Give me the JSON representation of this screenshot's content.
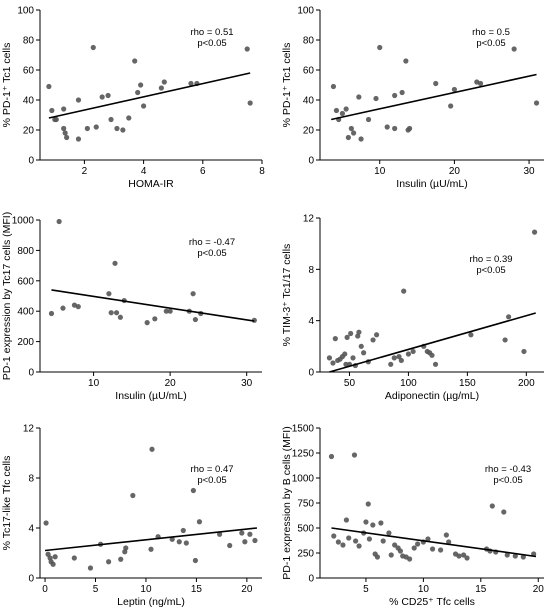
{
  "colors": {
    "point": "#555555",
    "line": "#000000",
    "axis": "#000000"
  },
  "chart_data": [
    {
      "type": "scatter",
      "xlabel": "HOMA-IR",
      "ylabel": "% PD-1⁺ Tc1 cells",
      "xlim": [
        0.5,
        8
      ],
      "ylim": [
        0,
        100
      ],
      "xticks": [
        "2",
        "4",
        "6",
        "8"
      ],
      "yticks": [
        "0",
        "20",
        "40",
        "60",
        "80",
        "100"
      ],
      "annotation": [
        "rho = 0.51",
        "p<0.05"
      ],
      "fit": {
        "x": [
          0.8,
          7.6
        ],
        "y": [
          28,
          58
        ]
      },
      "points": [
        {
          "x": 0.8,
          "y": 49
        },
        {
          "x": 0.9,
          "y": 33
        },
        {
          "x": 1.0,
          "y": 27
        },
        {
          "x": 1.05,
          "y": 27
        },
        {
          "x": 1.3,
          "y": 34
        },
        {
          "x": 1.3,
          "y": 21
        },
        {
          "x": 1.35,
          "y": 18
        },
        {
          "x": 1.4,
          "y": 15
        },
        {
          "x": 1.8,
          "y": 40
        },
        {
          "x": 1.8,
          "y": 14
        },
        {
          "x": 2.1,
          "y": 21
        },
        {
          "x": 2.3,
          "y": 75
        },
        {
          "x": 2.4,
          "y": 22
        },
        {
          "x": 2.6,
          "y": 42
        },
        {
          "x": 2.8,
          "y": 43
        },
        {
          "x": 2.9,
          "y": 27
        },
        {
          "x": 3.1,
          "y": 21
        },
        {
          "x": 3.3,
          "y": 20
        },
        {
          "x": 3.5,
          "y": 28
        },
        {
          "x": 3.7,
          "y": 66
        },
        {
          "x": 3.8,
          "y": 45
        },
        {
          "x": 3.9,
          "y": 50
        },
        {
          "x": 4.0,
          "y": 36
        },
        {
          "x": 4.6,
          "y": 48
        },
        {
          "x": 4.7,
          "y": 52
        },
        {
          "x": 5.6,
          "y": 51
        },
        {
          "x": 5.8,
          "y": 51
        },
        {
          "x": 7.5,
          "y": 74
        },
        {
          "x": 7.6,
          "y": 38
        }
      ]
    },
    {
      "type": "scatter",
      "xlabel": "Insulin (µU/mL)",
      "ylabel": "% PD-1⁺ Tc1 cells",
      "xlim": [
        2,
        32
      ],
      "ylim": [
        0,
        100
      ],
      "xticks": [
        "10",
        "20",
        "30"
      ],
      "yticks": [
        "0",
        "20",
        "40",
        "60",
        "80",
        "100"
      ],
      "annotation": [
        "rho = 0.5",
        "p<0.05"
      ],
      "fit": {
        "x": [
          3.5,
          31
        ],
        "y": [
          27,
          57
        ]
      },
      "points": [
        {
          "x": 3.8,
          "y": 49
        },
        {
          "x": 4.2,
          "y": 33
        },
        {
          "x": 4.5,
          "y": 27
        },
        {
          "x": 5.0,
          "y": 31
        },
        {
          "x": 5.5,
          "y": 34
        },
        {
          "x": 5.8,
          "y": 15
        },
        {
          "x": 6.2,
          "y": 21
        },
        {
          "x": 6.5,
          "y": 18
        },
        {
          "x": 7.2,
          "y": 42
        },
        {
          "x": 7.5,
          "y": 14
        },
        {
          "x": 8.5,
          "y": 27
        },
        {
          "x": 9.5,
          "y": 41
        },
        {
          "x": 10.0,
          "y": 75
        },
        {
          "x": 11.0,
          "y": 22
        },
        {
          "x": 12.0,
          "y": 43
        },
        {
          "x": 12.0,
          "y": 21
        },
        {
          "x": 13.0,
          "y": 45
        },
        {
          "x": 13.5,
          "y": 66
        },
        {
          "x": 13.8,
          "y": 20
        },
        {
          "x": 14.0,
          "y": 21
        },
        {
          "x": 17.5,
          "y": 51
        },
        {
          "x": 19.5,
          "y": 36
        },
        {
          "x": 20.0,
          "y": 47
        },
        {
          "x": 23.0,
          "y": 52
        },
        {
          "x": 23.5,
          "y": 51
        },
        {
          "x": 28.0,
          "y": 74
        },
        {
          "x": 31.0,
          "y": 38
        }
      ]
    },
    {
      "type": "scatter",
      "xlabel": "Insulin (µU/mL)",
      "ylabel": "PD-1 expression by Tc17 cells (MFI)",
      "xlim": [
        3,
        32
      ],
      "ylim": [
        0,
        1000
      ],
      "xticks": [
        "10",
        "20",
        "30"
      ],
      "yticks": [
        "0",
        "200",
        "400",
        "600",
        "800",
        "1000"
      ],
      "annotation": [
        "rho = -0.47",
        "p<0.05"
      ],
      "fit": {
        "x": [
          4.5,
          31
        ],
        "y": [
          540,
          335
        ]
      },
      "points": [
        {
          "x": 4.5,
          "y": 385
        },
        {
          "x": 5.5,
          "y": 990
        },
        {
          "x": 6.0,
          "y": 420
        },
        {
          "x": 7.5,
          "y": 440
        },
        {
          "x": 8.0,
          "y": 430
        },
        {
          "x": 12.0,
          "y": 515
        },
        {
          "x": 12.3,
          "y": 390
        },
        {
          "x": 12.8,
          "y": 715
        },
        {
          "x": 13.0,
          "y": 390
        },
        {
          "x": 13.5,
          "y": 360
        },
        {
          "x": 14.0,
          "y": 470
        },
        {
          "x": 17.0,
          "y": 325
        },
        {
          "x": 18.0,
          "y": 350
        },
        {
          "x": 19.5,
          "y": 400
        },
        {
          "x": 20.0,
          "y": 400
        },
        {
          "x": 22.5,
          "y": 400
        },
        {
          "x": 23.0,
          "y": 515
        },
        {
          "x": 23.3,
          "y": 345
        },
        {
          "x": 24.0,
          "y": 385
        },
        {
          "x": 31.0,
          "y": 340
        }
      ]
    },
    {
      "type": "scatter",
      "xlabel": "Adiponectin (µg/mL)",
      "ylabel": "% TIM-3⁺ Tc1/17 cells",
      "xlim": [
        25,
        215
      ],
      "ylim": [
        0,
        12
      ],
      "xticks": [
        "50",
        "100",
        "150",
        "200"
      ],
      "yticks": [
        "0",
        "4",
        "8",
        "12"
      ],
      "annotation": [
        "rho = 0.39",
        "p<0.05"
      ],
      "fit": {
        "x": [
          33,
          208
        ],
        "y": [
          0.0,
          4.6
        ]
      },
      "points": [
        {
          "x": 33,
          "y": 1.1
        },
        {
          "x": 36,
          "y": 0.7
        },
        {
          "x": 38,
          "y": 2.6
        },
        {
          "x": 40,
          "y": 0.9
        },
        {
          "x": 42,
          "y": 1.0
        },
        {
          "x": 44,
          "y": 1.2
        },
        {
          "x": 46,
          "y": 1.4
        },
        {
          "x": 47,
          "y": 0.6
        },
        {
          "x": 48,
          "y": 2.7
        },
        {
          "x": 50,
          "y": 0.6
        },
        {
          "x": 51,
          "y": 3.0
        },
        {
          "x": 53,
          "y": 1.1
        },
        {
          "x": 55,
          "y": 0.5
        },
        {
          "x": 57,
          "y": 2.8
        },
        {
          "x": 58,
          "y": 3.1
        },
        {
          "x": 60,
          "y": 2.0
        },
        {
          "x": 62,
          "y": 1.5
        },
        {
          "x": 66,
          "y": 0.8
        },
        {
          "x": 70,
          "y": 2.5
        },
        {
          "x": 73,
          "y": 2.9
        },
        {
          "x": 85,
          "y": 0.6
        },
        {
          "x": 88,
          "y": 1.1
        },
        {
          "x": 92,
          "y": 1.2
        },
        {
          "x": 94,
          "y": 0.9
        },
        {
          "x": 96,
          "y": 6.3
        },
        {
          "x": 100,
          "y": 1.4
        },
        {
          "x": 104,
          "y": 1.6
        },
        {
          "x": 113,
          "y": 2.0
        },
        {
          "x": 116,
          "y": 1.6
        },
        {
          "x": 118,
          "y": 1.5
        },
        {
          "x": 120,
          "y": 1.3
        },
        {
          "x": 123,
          "y": 0.6
        },
        {
          "x": 153,
          "y": 2.9
        },
        {
          "x": 182,
          "y": 2.5
        },
        {
          "x": 185,
          "y": 4.3
        },
        {
          "x": 198,
          "y": 1.6
        },
        {
          "x": 207,
          "y": 10.9
        }
      ]
    },
    {
      "type": "scatter",
      "xlabel": "Leptin (ng/mL)",
      "ylabel": "% Tc17-like Tfc cells",
      "xlim": [
        -0.5,
        21.5
      ],
      "ylim": [
        0,
        12
      ],
      "xticks": [
        "0",
        "5",
        "10",
        "15",
        "20"
      ],
      "yticks": [
        "0",
        "4",
        "8",
        "12"
      ],
      "annotation": [
        "rho = 0.47",
        "p<0.05"
      ],
      "fit": {
        "x": [
          0,
          21
        ],
        "y": [
          2.2,
          4.0
        ]
      },
      "points": [
        {
          "x": 0.1,
          "y": 4.4
        },
        {
          "x": 0.3,
          "y": 1.9
        },
        {
          "x": 0.5,
          "y": 1.6
        },
        {
          "x": 0.6,
          "y": 1.3
        },
        {
          "x": 0.8,
          "y": 1.1
        },
        {
          "x": 1.0,
          "y": 1.7
        },
        {
          "x": 2.9,
          "y": 1.6
        },
        {
          "x": 4.5,
          "y": 0.8
        },
        {
          "x": 5.5,
          "y": 2.7
        },
        {
          "x": 6.3,
          "y": 1.3
        },
        {
          "x": 7.5,
          "y": 1.5
        },
        {
          "x": 7.9,
          "y": 2.1
        },
        {
          "x": 8.0,
          "y": 2.4
        },
        {
          "x": 8.7,
          "y": 6.6
        },
        {
          "x": 10.6,
          "y": 10.3
        },
        {
          "x": 10.5,
          "y": 2.3
        },
        {
          "x": 11.2,
          "y": 3.3
        },
        {
          "x": 12.6,
          "y": 3.1
        },
        {
          "x": 13.3,
          "y": 2.9
        },
        {
          "x": 13.7,
          "y": 3.8
        },
        {
          "x": 14.0,
          "y": 2.8
        },
        {
          "x": 14.7,
          "y": 7.0
        },
        {
          "x": 14.9,
          "y": 1.4
        },
        {
          "x": 15.3,
          "y": 4.5
        },
        {
          "x": 17.3,
          "y": 3.5
        },
        {
          "x": 18.3,
          "y": 2.6
        },
        {
          "x": 19.5,
          "y": 3.6
        },
        {
          "x": 19.8,
          "y": 2.9
        },
        {
          "x": 20.3,
          "y": 3.5
        },
        {
          "x": 20.8,
          "y": 3.0
        }
      ]
    },
    {
      "type": "scatter",
      "xlabel": "% CD25⁺ Tfc cells",
      "ylabel": "PD-1 expression by B cells (MFI)",
      "xlim": [
        1,
        20.5
      ],
      "ylim": [
        0,
        1500
      ],
      "xticks": [
        "5",
        "10",
        "15",
        "20"
      ],
      "yticks": [
        "0",
        "250",
        "500",
        "750",
        "1000",
        "1250",
        "1500"
      ],
      "annotation": [
        "rho = -0.43",
        "p<0.05"
      ],
      "fit": {
        "x": [
          2.0,
          19.8
        ],
        "y": [
          500,
          215
        ]
      },
      "points": [
        {
          "x": 2.0,
          "y": 1215
        },
        {
          "x": 2.2,
          "y": 420
        },
        {
          "x": 2.6,
          "y": 360
        },
        {
          "x": 3.0,
          "y": 330
        },
        {
          "x": 3.3,
          "y": 580
        },
        {
          "x": 3.5,
          "y": 400
        },
        {
          "x": 4.0,
          "y": 1230
        },
        {
          "x": 4.1,
          "y": 370
        },
        {
          "x": 4.4,
          "y": 320
        },
        {
          "x": 4.8,
          "y": 450
        },
        {
          "x": 5.0,
          "y": 560
        },
        {
          "x": 5.2,
          "y": 740
        },
        {
          "x": 5.3,
          "y": 390
        },
        {
          "x": 5.6,
          "y": 530
        },
        {
          "x": 5.8,
          "y": 240
        },
        {
          "x": 6.0,
          "y": 210
        },
        {
          "x": 6.3,
          "y": 550
        },
        {
          "x": 6.5,
          "y": 370
        },
        {
          "x": 7.0,
          "y": 450
        },
        {
          "x": 7.2,
          "y": 230
        },
        {
          "x": 7.5,
          "y": 330
        },
        {
          "x": 7.8,
          "y": 300
        },
        {
          "x": 8.0,
          "y": 270
        },
        {
          "x": 8.2,
          "y": 220
        },
        {
          "x": 8.5,
          "y": 210
        },
        {
          "x": 8.8,
          "y": 190
        },
        {
          "x": 9.2,
          "y": 300
        },
        {
          "x": 9.5,
          "y": 340
        },
        {
          "x": 10.0,
          "y": 360
        },
        {
          "x": 10.4,
          "y": 390
        },
        {
          "x": 10.8,
          "y": 290
        },
        {
          "x": 11.5,
          "y": 280
        },
        {
          "x": 12.0,
          "y": 430
        },
        {
          "x": 12.2,
          "y": 360
        },
        {
          "x": 12.8,
          "y": 240
        },
        {
          "x": 13.1,
          "y": 220
        },
        {
          "x": 13.5,
          "y": 230
        },
        {
          "x": 13.8,
          "y": 200
        },
        {
          "x": 15.5,
          "y": 290
        },
        {
          "x": 15.8,
          "y": 270
        },
        {
          "x": 16.0,
          "y": 720
        },
        {
          "x": 16.3,
          "y": 260
        },
        {
          "x": 17.0,
          "y": 660
        },
        {
          "x": 17.3,
          "y": 230
        },
        {
          "x": 18.0,
          "y": 220
        },
        {
          "x": 18.7,
          "y": 210
        },
        {
          "x": 19.6,
          "y": 240
        }
      ]
    }
  ]
}
